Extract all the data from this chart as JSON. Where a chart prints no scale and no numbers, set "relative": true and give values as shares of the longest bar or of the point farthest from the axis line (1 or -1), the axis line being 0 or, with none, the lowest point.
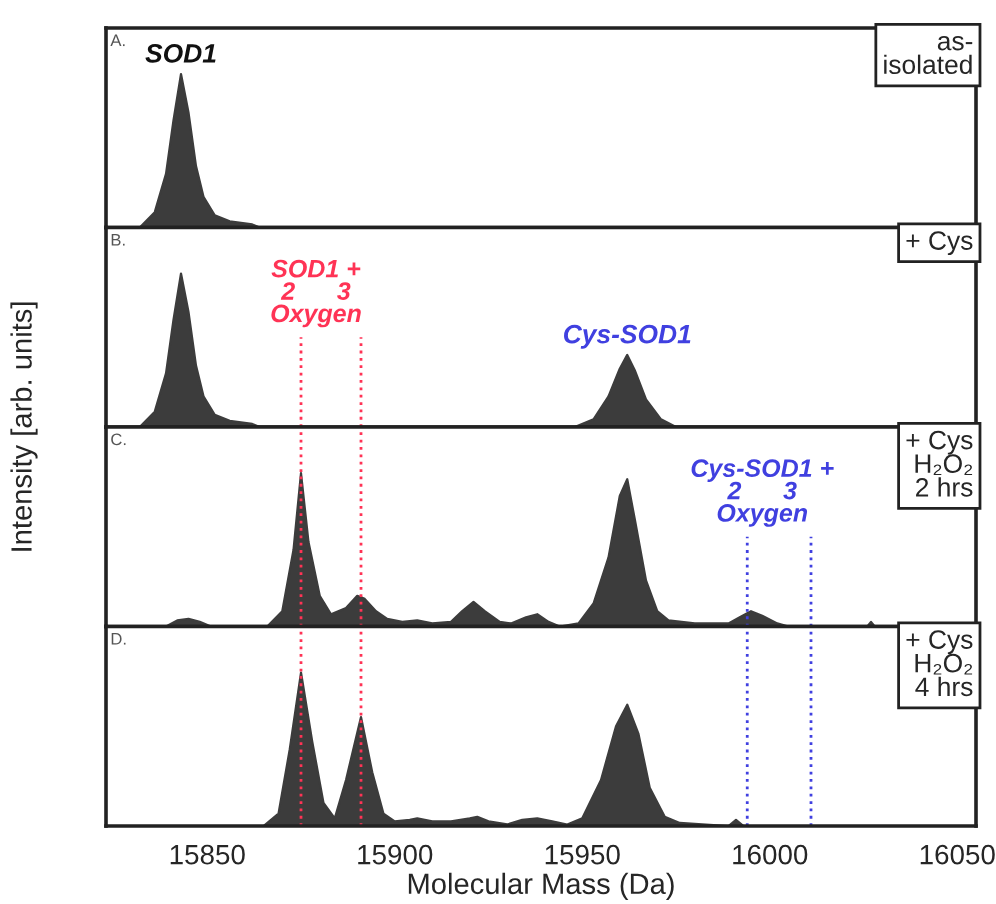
{
  "chart_data": [
    {
      "type": "area",
      "relative": true,
      "xlim": [
        15823,
        16055
      ],
      "tick_labels": false,
      "ylabel": "Intensity [arb. units]",
      "annotations": [
        "A.",
        "as-\nisolated"
      ],
      "series": [
        {
          "name": "SOD1",
          "color": "#3c3c3c",
          "x": [
            15832,
            15836,
            15839,
            15841,
            15843,
            15845,
            15847,
            15849,
            15852,
            15856,
            15862,
            15864
          ],
          "values": [
            0,
            0.1,
            0.35,
            0.7,
            1.0,
            0.75,
            0.4,
            0.2,
            0.08,
            0.04,
            0.02,
            0
          ]
        }
      ]
    },
    {
      "type": "area",
      "relative": true,
      "xlim": [
        15823,
        16055
      ],
      "tick_labels": false,
      "annotations": [
        "B.",
        "+ Cys"
      ],
      "ref_lines": [
        {
          "axis": "x",
          "value": 15875,
          "label": "SOD1 +\n2      3\nOxygen",
          "color": "#ff3355",
          "line_style": "dotted"
        },
        {
          "axis": "x",
          "value": 15891,
          "color": "#ff3355",
          "line_style": "dotted"
        }
      ],
      "series": [
        {
          "color": "#3c3c3c",
          "x": [
            15832,
            15836,
            15839,
            15841,
            15843,
            15845,
            15847,
            15849,
            15852,
            15856,
            15862,
            15864
          ],
          "values": [
            0,
            0.1,
            0.35,
            0.7,
            1.0,
            0.75,
            0.4,
            0.2,
            0.08,
            0.04,
            0.02,
            0
          ]
        },
        {
          "name": "Cys-SOD1",
          "color": "#3c3c3c",
          "x": [
            15948,
            15953,
            15957,
            15960,
            15962,
            15964,
            15967,
            15971,
            15975
          ],
          "values": [
            0,
            0.05,
            0.2,
            0.38,
            0.47,
            0.37,
            0.18,
            0.05,
            0
          ]
        }
      ]
    },
    {
      "type": "area",
      "relative": true,
      "xlim": [
        15823,
        16055
      ],
      "tick_labels": false,
      "annotations": [
        "C.",
        "+ Cys\nH₂O₂\n2 hrs"
      ],
      "ref_lines": [
        {
          "axis": "x",
          "value": 15875,
          "color": "#ff3355",
          "line_style": "dotted"
        },
        {
          "axis": "x",
          "value": 15891,
          "color": "#ff3355",
          "line_style": "dotted"
        },
        {
          "axis": "x",
          "value": 15994,
          "label": "Cys-SOD1 +\n2      3\nOxygen",
          "color": "#4040e0",
          "line_style": "dotted"
        },
        {
          "axis": "x",
          "value": 16011,
          "color": "#4040e0",
          "line_style": "dotted"
        }
      ],
      "series": [
        {
          "color": "#3c3c3c",
          "x": [
            15839,
            15842,
            15845,
            15848,
            15851,
            15866,
            15870,
            15873,
            15875,
            15877,
            15880,
            15883,
            15887,
            15890,
            15892,
            15895,
            15898,
            15902,
            15906,
            15910,
            15915,
            15918,
            15921,
            15924,
            15928,
            15931,
            15935,
            15938,
            15941,
            15944,
            15949,
            15953,
            15957,
            15960,
            15962,
            15964,
            15967,
            15970,
            15973,
            15980,
            15989,
            15992,
            15995,
            15998,
            16002,
            16005,
            16026,
            16027,
            16028
          ],
          "values": [
            0,
            0.04,
            0.05,
            0.03,
            0,
            0,
            0.1,
            0.5,
            1.0,
            0.55,
            0.2,
            0.08,
            0.12,
            0.2,
            0.18,
            0.1,
            0.05,
            0.03,
            0.04,
            0.02,
            0.03,
            0.1,
            0.16,
            0.1,
            0.03,
            0.02,
            0.06,
            0.08,
            0.03,
            0,
            0.02,
            0.15,
            0.45,
            0.85,
            0.96,
            0.7,
            0.3,
            0.1,
            0.04,
            0.02,
            0.02,
            0.06,
            0.1,
            0.07,
            0.02,
            0,
            0,
            0.03,
            0
          ]
        }
      ]
    },
    {
      "type": "area",
      "relative": true,
      "xlim": [
        15823,
        16055
      ],
      "xticks": [
        15850,
        15900,
        15950,
        16000,
        16050
      ],
      "tick_labels": "x",
      "xlabel": "Molecular Mass (Da)",
      "annotations": [
        "D.",
        "+ Cys\nH₂O₂\n4 hrs"
      ],
      "ref_lines": [
        {
          "axis": "x",
          "value": 15875,
          "color": "#ff3355",
          "line_style": "dotted"
        },
        {
          "axis": "x",
          "value": 15891,
          "color": "#ff3355",
          "line_style": "dotted"
        },
        {
          "axis": "x",
          "value": 15994,
          "color": "#4040e0",
          "line_style": "dotted"
        },
        {
          "axis": "x",
          "value": 16011,
          "color": "#4040e0",
          "line_style": "dotted"
        }
      ],
      "series": [
        {
          "color": "#3c3c3c",
          "x": [
            15865,
            15869,
            15872,
            15875,
            15878,
            15881,
            15884,
            15887,
            15891,
            15894,
            15897,
            15900,
            15904,
            15906,
            15910,
            15915,
            15920,
            15922,
            15925,
            15930,
            15934,
            15938,
            15942,
            15946,
            15950,
            15955,
            15959,
            15962,
            15965,
            15968,
            15972,
            15976,
            15989,
            15991,
            15993
          ],
          "values": [
            0,
            0.08,
            0.5,
            1.0,
            0.55,
            0.15,
            0.05,
            0.3,
            0.71,
            0.35,
            0.08,
            0.03,
            0.04,
            0.05,
            0.03,
            0.03,
            0.05,
            0.06,
            0.03,
            0.01,
            0.04,
            0.05,
            0.03,
            0.01,
            0.05,
            0.3,
            0.65,
            0.79,
            0.6,
            0.25,
            0.06,
            0.02,
            0,
            0.04,
            0
          ]
        }
      ]
    }
  ]
}
